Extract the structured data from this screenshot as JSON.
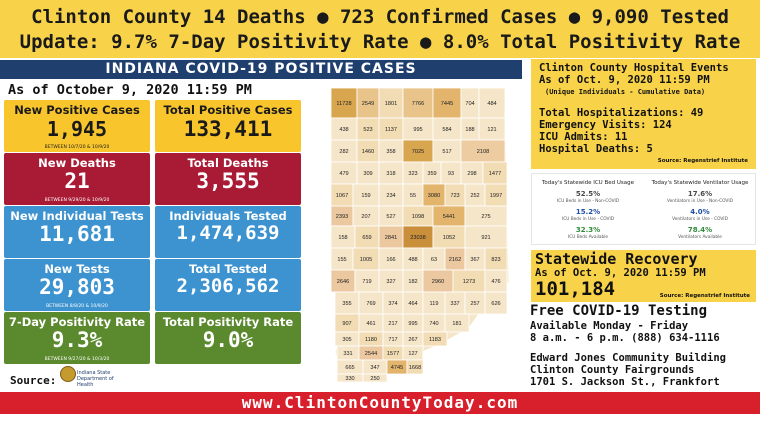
{
  "header": {
    "line1": "Clinton County 14 Deaths  ● 723 Confirmed Cases   ● 9,090 Tested",
    "line2": "Update:   9.7% 7-Day Positivity Rate  ● 8.0% Total Positivity Rate"
  },
  "banner": {
    "title": "INDIANA COVID-19 POSITIVE CASES",
    "as_of": "As of October 9, 2020 11:59 PM"
  },
  "cards": {
    "new_positive": {
      "label": "New Positive Cases",
      "value": "1,945",
      "note": "BETWEEN 10/7/20 & 10/9/20"
    },
    "total_positive": {
      "label": "Total Positive Cases",
      "value": "133,411"
    },
    "new_deaths": {
      "label": "New Deaths",
      "value": "21",
      "note": "BETWEEN 9/29/20 & 10/9/20"
    },
    "total_deaths": {
      "label": "Total Deaths",
      "value": "3,555"
    },
    "new_individual_tests": {
      "label": "New Individual Tests",
      "value": "11,681"
    },
    "individuals_tested": {
      "label": "Individuals Tested",
      "value": "1,474,639"
    },
    "new_tests": {
      "label": "New Tests",
      "value": "29,803",
      "note": "BETWEEN 8/8/20 & 10/9/20"
    },
    "total_tested": {
      "label": "Total Tested",
      "value": "2,306,562"
    },
    "seven_day_rate": {
      "label": "7-Day Positivity Rate",
      "value": "9.3%",
      "note": "BETWEEN 9/27/20 & 10/3/20"
    },
    "total_rate": {
      "label": "Total Positivity Rate",
      "value": "9.0%"
    }
  },
  "source": {
    "label": "Source:",
    "logo_text_1": "Indiana State",
    "logo_text_2": "Department of Health"
  },
  "map": {
    "counties": [
      {
        "n": "11728",
        "c": "#d9a650"
      },
      {
        "n": "2549",
        "c": "#e8c48a"
      },
      {
        "n": "1801",
        "c": "#f2dcb4"
      },
      {
        "n": "7766",
        "c": "#e8c48a"
      },
      {
        "n": "7445",
        "c": "#e3b56c"
      },
      {
        "n": "704",
        "c": "#f6e6c9"
      },
      {
        "n": "484",
        "c": "#f6e6c9"
      },
      {
        "n": "438",
        "c": "#f6e6c9"
      },
      {
        "n": "523",
        "c": "#f2dcb4"
      },
      {
        "n": "1137",
        "c": "#f2dcb4"
      },
      {
        "n": "995",
        "c": "#f6e6c9"
      },
      {
        "n": "584",
        "c": "#f6e6c9"
      },
      {
        "n": "188",
        "c": "#f6e6c9"
      },
      {
        "n": "121",
        "c": "#f6e6c9"
      },
      {
        "n": "282",
        "c": "#f6e6c9"
      },
      {
        "n": "1460",
        "c": "#f2dcb4"
      },
      {
        "n": "358",
        "c": "#f6e6c9"
      },
      {
        "n": "7025",
        "c": "#d9a650"
      },
      {
        "n": "517",
        "c": "#f6e6c9"
      },
      {
        "n": "2108",
        "c": "#ecccA0"
      },
      {
        "n": "479",
        "c": "#f6e6c9"
      },
      {
        "n": "309",
        "c": "#f6e6c9"
      },
      {
        "n": "318",
        "c": "#f6e6c9"
      },
      {
        "n": "323",
        "c": "#f6e6c9"
      },
      {
        "n": "359",
        "c": "#f6e6c9"
      },
      {
        "n": "93",
        "c": "#f6e6c9"
      },
      {
        "n": "298",
        "c": "#f6e6c9"
      },
      {
        "n": "1477",
        "c": "#f2dcb4"
      },
      {
        "n": "1067",
        "c": "#f2dcb4"
      },
      {
        "n": "159",
        "c": "#f6e6c9"
      },
      {
        "n": "234",
        "c": "#f6e6c9"
      },
      {
        "n": "55",
        "c": "#f6e6c9"
      },
      {
        "n": "3080",
        "c": "#e3b56c"
      },
      {
        "n": "723",
        "c": "#f2dcb4"
      },
      {
        "n": "252",
        "c": "#f6e6c9"
      },
      {
        "n": "1997",
        "c": "#f2dcb4"
      },
      {
        "n": "2393",
        "c": "#ecc8a0"
      },
      {
        "n": "207",
        "c": "#f6e6c9"
      },
      {
        "n": "527",
        "c": "#f6e6c9"
      },
      {
        "n": "1098",
        "c": "#f2dcb4"
      },
      {
        "n": "5441",
        "c": "#e3b56c"
      },
      {
        "n": "275",
        "c": "#f6e6c9"
      },
      {
        "n": "158",
        "c": "#f6e6c9"
      },
      {
        "n": "659",
        "c": "#f2dcb4"
      },
      {
        "n": "2841",
        "c": "#ecc8a0"
      },
      {
        "n": "23038",
        "c": "#c98f3a"
      },
      {
        "n": "1052",
        "c": "#f2dcb4"
      },
      {
        "n": "921",
        "c": "#f6e6c9"
      },
      {
        "n": "155",
        "c": "#f6e6c9"
      },
      {
        "n": "1005",
        "c": "#f2dcb4"
      },
      {
        "n": "166",
        "c": "#f6e6c9"
      },
      {
        "n": "488",
        "c": "#f6e6c9"
      },
      {
        "n": "63",
        "c": "#f6e6c9"
      },
      {
        "n": "2162",
        "c": "#ecc8a0"
      },
      {
        "n": "367",
        "c": "#f6e6c9"
      },
      {
        "n": "823",
        "c": "#f2dcb4"
      },
      {
        "n": "2646",
        "c": "#ecc8a0"
      },
      {
        "n": "719",
        "c": "#f6e6c9"
      },
      {
        "n": "327",
        "c": "#f6e6c9"
      },
      {
        "n": "182",
        "c": "#f6e6c9"
      },
      {
        "n": "2960",
        "c": "#ecc8a0"
      },
      {
        "n": "1273",
        "c": "#f2dcb4"
      },
      {
        "n": "476",
        "c": "#f6e6c9"
      },
      {
        "n": "355",
        "c": "#f6e6c9"
      },
      {
        "n": "769",
        "c": "#f6e6c9"
      },
      {
        "n": "374",
        "c": "#f6e6c9"
      },
      {
        "n": "464",
        "c": "#f6e6c9"
      },
      {
        "n": "119",
        "c": "#f6e6c9"
      },
      {
        "n": "337",
        "c": "#f6e6c9"
      },
      {
        "n": "257",
        "c": "#f6e6c9"
      },
      {
        "n": "626",
        "c": "#f6e6c9"
      },
      {
        "n": "907",
        "c": "#f2dcb4"
      },
      {
        "n": "461",
        "c": "#f6e6c9"
      },
      {
        "n": "217",
        "c": "#f6e6c9"
      },
      {
        "n": "995",
        "c": "#f6e6c9"
      },
      {
        "n": "740",
        "c": "#f6e6c9"
      },
      {
        "n": "181",
        "c": "#f6e6c9"
      },
      {
        "n": "305",
        "c": "#f6e6c9"
      },
      {
        "n": "1180",
        "c": "#f2dcb4"
      },
      {
        "n": "717",
        "c": "#f6e6c9"
      },
      {
        "n": "267",
        "c": "#f6e6c9"
      },
      {
        "n": "1183",
        "c": "#f2dcb4"
      },
      {
        "n": "331",
        "c": "#f6e6c9"
      },
      {
        "n": "2544",
        "c": "#ecc8a0"
      },
      {
        "n": "1577",
        "c": "#f2dcb4"
      },
      {
        "n": "127",
        "c": "#f6e6c9"
      },
      {
        "n": "665",
        "c": "#f6e6c9"
      },
      {
        "n": "347",
        "c": "#f6e6c9"
      },
      {
        "n": "4745",
        "c": "#e3b56c"
      },
      {
        "n": "1668",
        "c": "#f2dcb4"
      },
      {
        "n": "330",
        "c": "#f6e6c9"
      },
      {
        "n": "250",
        "c": "#f6e6c9"
      }
    ]
  },
  "hospital": {
    "title1": "Clinton County Hospital Events",
    "title2": "As of Oct. 9, 2020 11:59 PM",
    "subtitle": "(Unique Individuals - Cumulative Data)",
    "hospitalizations": "Total Hospitalizations: 49",
    "emergency": "Emergency Visits: 124",
    "icu": "ICU Admits: 11",
    "deaths": "Hospital Deaths: 5",
    "source": "Source: Regenstrief Institute"
  },
  "usage": {
    "icu": {
      "title": "Today's Statewide ICU Bed Usage",
      "items": [
        {
          "pct": "52.5%",
          "desc": "ICU Beds in Use - Non-COVID",
          "color": "#4a4a4a"
        },
        {
          "pct": "15.2%",
          "desc": "ICU Beds in Use - COVID",
          "color": "#1f4ea8"
        },
        {
          "pct": "32.3%",
          "desc": "ICU Beds Available",
          "color": "#2f8a3a"
        }
      ]
    },
    "vent": {
      "title": "Today's Statewide Ventilator Usage",
      "items": [
        {
          "pct": "17.6%",
          "desc": "Ventilators in Use - Non-COVID",
          "color": "#4a4a4a"
        },
        {
          "pct": "4.0%",
          "desc": "Ventilators in Use - COVID",
          "color": "#1f4ea8"
        },
        {
          "pct": "78.4%",
          "desc": "Ventilators Available",
          "color": "#2f8a3a"
        }
      ]
    }
  },
  "recovery": {
    "title": "Statewide Recovery",
    "as_of": "As of Oct. 9, 2020 11:59 PM",
    "value": "101,184",
    "source": "Source: Regenstrief Institute"
  },
  "testing": {
    "title": "Free COVID-19 Testing",
    "days": "Available Monday - Friday",
    "hours": "8 a.m. - 6 p.m.    (888) 634-1116",
    "venue": "Edward Jones Community Building",
    "place": "Clinton County Fairgrounds",
    "address": "1701 S. Jackson St., Frankfort"
  },
  "footer": {
    "url": "www.ClintonCountyToday.com"
  },
  "colors": {
    "yellow": "#f8d34a",
    "navy": "#1f3f6e",
    "red": "#d8202c"
  }
}
